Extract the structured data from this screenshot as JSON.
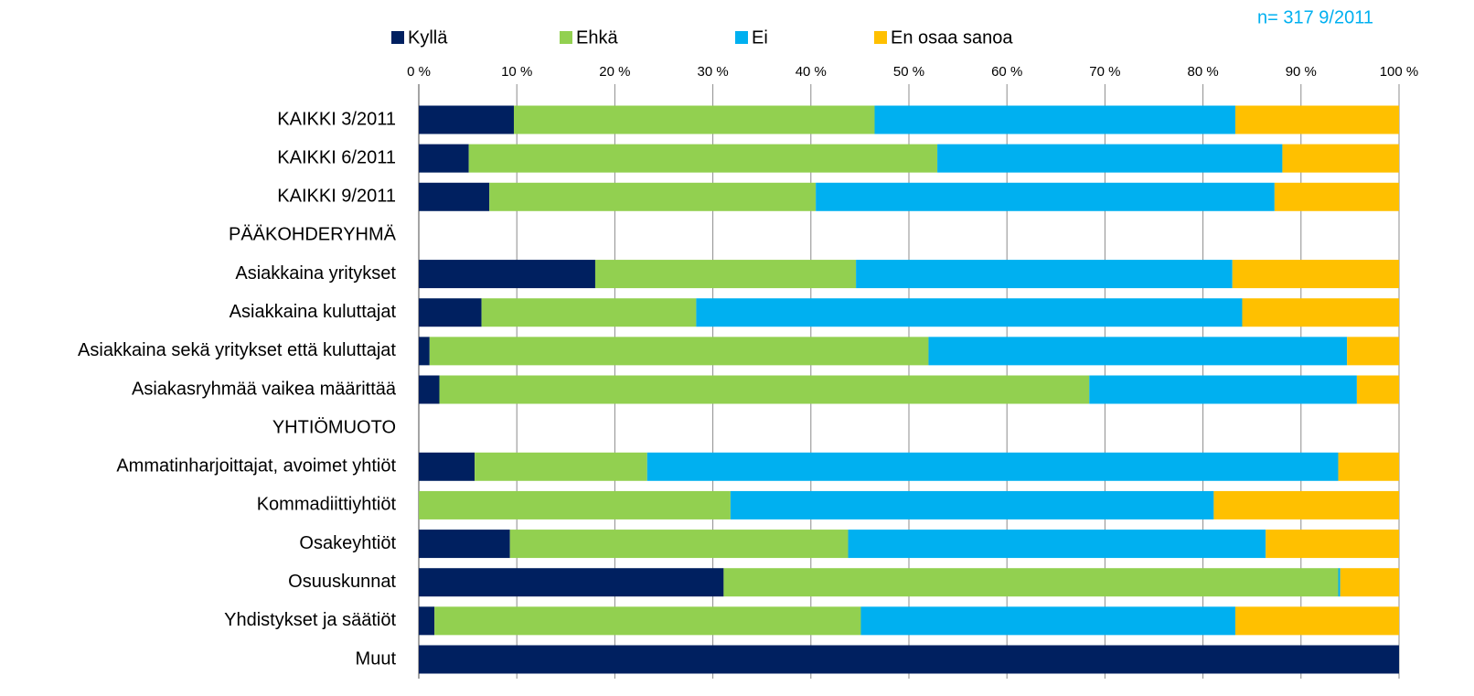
{
  "chart_data": {
    "type": "bar",
    "orientation": "horizontal",
    "stacked": true,
    "annotation": "n= 317  9/2011",
    "categories": [
      "KAIKKI 3/2011",
      "KAIKKI 6/2011",
      "KAIKKI 9/2011",
      "PÄÄKOHDERYHMÄ",
      "Asiakkaina yritykset",
      "Asiakkaina kuluttajat",
      "Asiakkaina sekä yritykset että kuluttajat",
      "Asiakasryhmää vaikea määrittää",
      "YHTIÖMUOTO",
      "Ammatinharjoittajat, avoimet yhtiöt",
      "Kommadiittiyhtiöt",
      "Osakeyhtiöt",
      "Osuuskunnat",
      "Yhdistykset ja säätiöt",
      "Muut"
    ],
    "series": [
      {
        "name": "Kyllä",
        "color": "#002060",
        "values": [
          9.7,
          5.1,
          7.2,
          null,
          18.0,
          6.4,
          1.1,
          2.1,
          null,
          5.7,
          0,
          9.3,
          31.1,
          1.6,
          100
        ]
      },
      {
        "name": "Ehkä",
        "color": "#92d050",
        "values": [
          36.8,
          47.8,
          33.3,
          null,
          26.6,
          21.9,
          50.9,
          66.3,
          null,
          17.6,
          31.8,
          34.5,
          62.7,
          43.5,
          0
        ]
      },
      {
        "name": "Ei",
        "color": "#00b0f0",
        "values": [
          36.8,
          35.2,
          46.8,
          null,
          38.4,
          55.7,
          42.7,
          27.3,
          null,
          70.5,
          49.3,
          42.6,
          0.2,
          38.2,
          0
        ]
      },
      {
        "name": "En osaa sanoa",
        "color": "#ffc000",
        "values": [
          16.7,
          11.9,
          12.7,
          null,
          17.0,
          16.0,
          5.3,
          4.3,
          null,
          6.2,
          18.9,
          13.6,
          6.0,
          16.7,
          0
        ]
      }
    ],
    "xlim": [
      0,
      100
    ],
    "xticks": [
      {
        "value": 0,
        "label": "0 %"
      },
      {
        "value": 10,
        "label": "10 %"
      },
      {
        "value": 20,
        "label": "20 %"
      },
      {
        "value": 30,
        "label": "30 %"
      },
      {
        "value": 40,
        "label": "40 %"
      },
      {
        "value": 50,
        "label": "50 %"
      },
      {
        "value": 60,
        "label": "60 %"
      },
      {
        "value": 70,
        "label": "70 %"
      },
      {
        "value": 80,
        "label": "80 %"
      },
      {
        "value": 90,
        "label": "90 %"
      },
      {
        "value": 100,
        "label": "100 %"
      }
    ],
    "grid": true,
    "legend": "top"
  }
}
